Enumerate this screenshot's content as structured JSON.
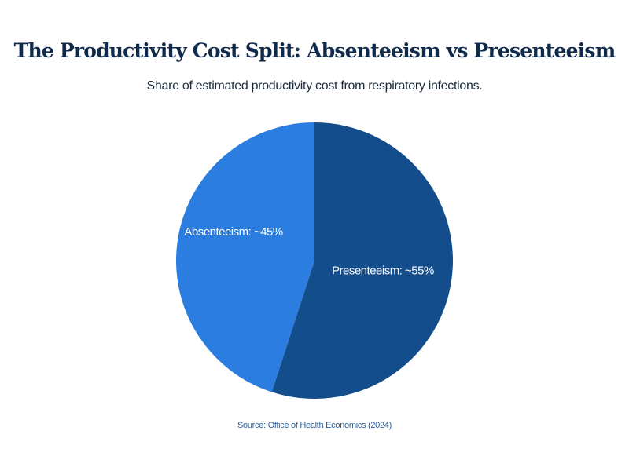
{
  "chart_data": {
    "type": "pie",
    "title": "The Productivity Cost Split: Absenteeism vs Presenteeism",
    "subtitle": "Share of estimated productivity cost from respiratory infections.",
    "slices": [
      {
        "label": "Presenteeism: ~55%",
        "value": 55,
        "color": "#144d8c"
      },
      {
        "label": "Absenteeism: ~45%",
        "value": 45,
        "color": "#2b7de0"
      }
    ],
    "source": "Source: Office of Health Economics (2024)"
  }
}
